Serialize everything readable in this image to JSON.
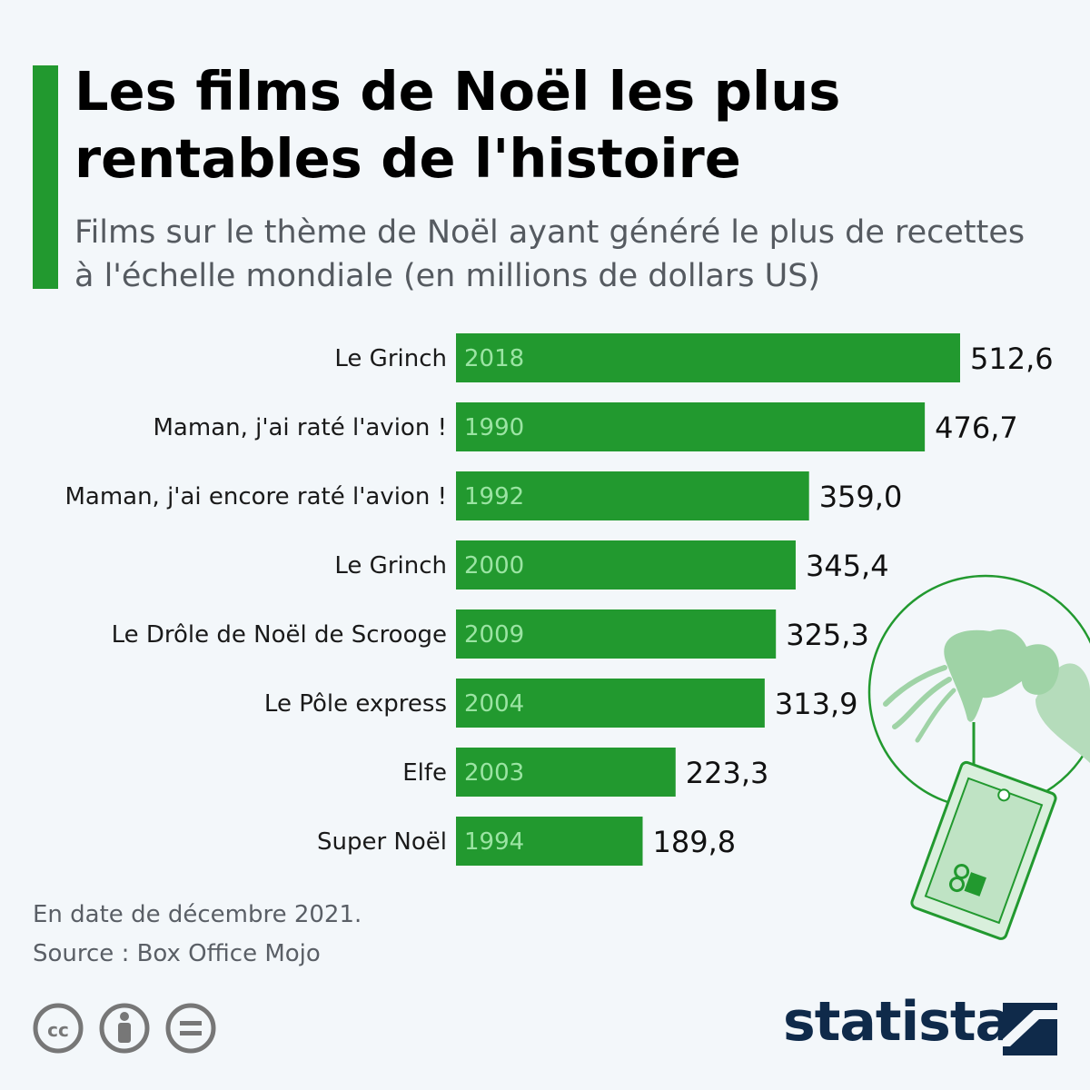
{
  "header": {
    "title": "Les films de Noël les plus rentables de l'histoire",
    "subtitle": "Films sur le thème de Noël ayant généré le plus de recettes à l'échelle mondiale (en millions de dollars US)"
  },
  "chart_data": {
    "type": "bar",
    "orientation": "horizontal",
    "categories": [
      "Le Grinch",
      "Maman, j'ai raté l'avion !",
      "Maman, j'ai encore raté l'avion !",
      "Le Grinch",
      "Le Drôle de Noël de Scrooge",
      "Le Pôle express",
      "Elfe",
      "Super Noël"
    ],
    "years": [
      "2018",
      "1990",
      "1992",
      "2000",
      "2009",
      "2004",
      "2003",
      "1994"
    ],
    "values": [
      512.6,
      476.7,
      359.0,
      345.4,
      325.3,
      313.9,
      223.3,
      189.8
    ],
    "value_labels": [
      "512,6",
      "476,7",
      "359,0",
      "345,4",
      "325,3",
      "313,9",
      "223,3",
      "189,8"
    ],
    "bar_color": "#22992f",
    "xlim": [
      0,
      512.6
    ],
    "grid": false,
    "legend": "none"
  },
  "footer": {
    "note": "En date de décembre 2021.",
    "source": "Source : Box Office Mojo",
    "logo": "statista",
    "license_icons": [
      "cc-icon",
      "attribution-icon",
      "no-derivatives-icon"
    ]
  },
  "colors": {
    "accent": "#22992f",
    "background": "#f3f7fa",
    "brand": "#0f2a4a"
  }
}
